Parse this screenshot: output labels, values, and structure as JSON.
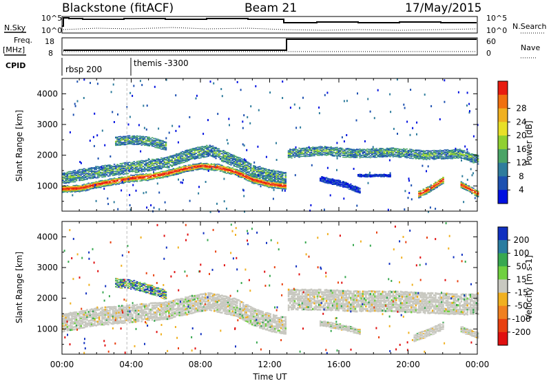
{
  "header": {
    "station": "Blackstone (fitACF)",
    "beam": "Beam 21",
    "date": "17/May/2015"
  },
  "summary_panels": {
    "nsky_label": "N.Sky",
    "nsearch_label": "N.Search",
    "tick_hi": "10^5",
    "tick_lo": "10^0",
    "freq_label_1": "Freq.",
    "freq_label_2": "[MHz]",
    "freq_ticks": [
      "18",
      "8"
    ],
    "nave_ticks": [
      "60",
      "0"
    ],
    "nave_label": "Nave",
    "cpid_label": "CPID",
    "cpid_segments": [
      {
        "name": "rbsp 200",
        "start_hour": 0
      },
      {
        "name": "themis -3300",
        "start_hour": 3.75
      }
    ]
  },
  "chart_data": [
    {
      "type": "heatmap",
      "title": "",
      "xlabel": "",
      "ylabel": "Slant Range [km]",
      "xlim": [
        0,
        24
      ],
      "ylim": [
        180,
        4500
      ],
      "y_ticks": [
        "1000",
        "2000",
        "3000",
        "4000"
      ],
      "colorbar": {
        "label": "Power [dB]",
        "ticks": [
          "4",
          "8",
          "12",
          "16",
          "20",
          "24",
          "28"
        ],
        "colors": [
          "#0010e0",
          "#1c50b0",
          "#2e7c9c",
          "#4aa466",
          "#90d030",
          "#e8e028",
          "#f0b020",
          "#f07010",
          "#e81c10"
        ]
      },
      "bands": [
        {
          "points": [
            [
              0,
              900
            ],
            [
              1,
              920
            ],
            [
              2,
              1050
            ],
            [
              3,
              1150
            ],
            [
              4,
              1250
            ],
            [
              5,
              1300
            ],
            [
              6,
              1400
            ],
            [
              7,
              1550
            ],
            [
              8,
              1650
            ],
            [
              9,
              1600
            ],
            [
              10,
              1450
            ],
            [
              11,
              1200
            ],
            [
              12,
              1050
            ],
            [
              12.9,
              1000
            ]
          ],
          "width": 220,
          "level": "high"
        },
        {
          "points": [
            [
              0,
              1250
            ],
            [
              2,
              1450
            ],
            [
              4,
              1600
            ],
            [
              6,
              1750
            ],
            [
              7.5,
              2050
            ],
            [
              8.5,
              2150
            ],
            [
              10,
              1800
            ],
            [
              11,
              1500
            ],
            [
              12,
              1350
            ],
            [
              12.9,
              1250
            ]
          ],
          "width": 380,
          "level": "mid"
        },
        {
          "points": [
            [
              3,
              2450
            ],
            [
              4,
              2500
            ],
            [
              5,
              2450
            ],
            [
              6,
              2300
            ]
          ],
          "width": 300,
          "level": "mid"
        },
        {
          "points": [
            [
              13,
              2050
            ],
            [
              15,
              2150
            ],
            [
              17,
              2050
            ],
            [
              19,
              2100
            ],
            [
              21,
              2000
            ],
            [
              23,
              2050
            ],
            [
              24,
              1850
            ]
          ],
          "width": 300,
          "level": "mid"
        },
        {
          "points": [
            [
              20.5,
              700
            ],
            [
              21.2,
              900
            ],
            [
              22,
              1200
            ]
          ],
          "width": 220,
          "level": "high"
        },
        {
          "points": [
            [
              23,
              1050
            ],
            [
              24,
              750
            ]
          ],
          "width": 200,
          "level": "high"
        },
        {
          "points": [
            [
              14.8,
              1250
            ],
            [
              16.3,
              1050
            ],
            [
              17.2,
              850
            ]
          ],
          "width": 180,
          "level": "low"
        },
        {
          "points": [
            [
              17,
              1350
            ],
            [
              19,
              1350
            ]
          ],
          "width": 70,
          "level": "low"
        }
      ]
    },
    {
      "type": "heatmap",
      "title": "",
      "xlabel": "Time UT",
      "ylabel": "Slant Range [km]",
      "xlim": [
        0,
        24
      ],
      "ylim": [
        180,
        4500
      ],
      "x_ticks": [
        "00:00",
        "04:00",
        "08:00",
        "12:00",
        "16:00",
        "20:00",
        "00:00"
      ],
      "y_ticks": [
        "1000",
        "2000",
        "3000",
        "4000"
      ],
      "colorbar": {
        "label": "Velocity [m s-1]",
        "ticks": [
          "200",
          "100",
          "50",
          "15",
          "-15",
          "-50",
          "-100",
          "-200"
        ],
        "colors": [
          "#1030c0",
          "#2a7ca0",
          "#38a850",
          "#70d040",
          "#c8c8c0",
          "#f0b020",
          "#f08020",
          "#e84010",
          "#e01010"
        ]
      },
      "bands": [
        {
          "points": [
            [
              0,
              1200
            ],
            [
              2,
              1400
            ],
            [
              4,
              1500
            ],
            [
              6,
              1600
            ],
            [
              7.5,
              1800
            ],
            [
              8.5,
              1900
            ],
            [
              10,
              1700
            ],
            [
              11,
              1400
            ],
            [
              12,
              1200
            ],
            [
              12.9,
              1100
            ]
          ],
          "width": 600,
          "level": "gray"
        },
        {
          "points": [
            [
              3,
              2500
            ],
            [
              4,
              2450
            ],
            [
              5,
              2300
            ],
            [
              6,
              2100
            ]
          ],
          "width": 300,
          "level": "mix"
        },
        {
          "points": [
            [
              13,
              1950
            ],
            [
              15,
              1950
            ],
            [
              17,
              1900
            ],
            [
              19,
              1900
            ],
            [
              21,
              1850
            ],
            [
              23,
              1800
            ],
            [
              24,
              1800
            ]
          ],
          "width": 700,
          "level": "gray"
        },
        {
          "points": [
            [
              20.3,
              700
            ],
            [
              21.2,
              900
            ],
            [
              22,
              1100
            ]
          ],
          "width": 250,
          "level": "gray"
        },
        {
          "points": [
            [
              23,
              1000
            ],
            [
              24,
              800
            ]
          ],
          "width": 200,
          "level": "gray"
        },
        {
          "points": [
            [
              14.8,
              1200
            ],
            [
              16.3,
              1050
            ],
            [
              17.2,
              900
            ]
          ],
          "width": 180,
          "level": "gray"
        }
      ]
    }
  ]
}
